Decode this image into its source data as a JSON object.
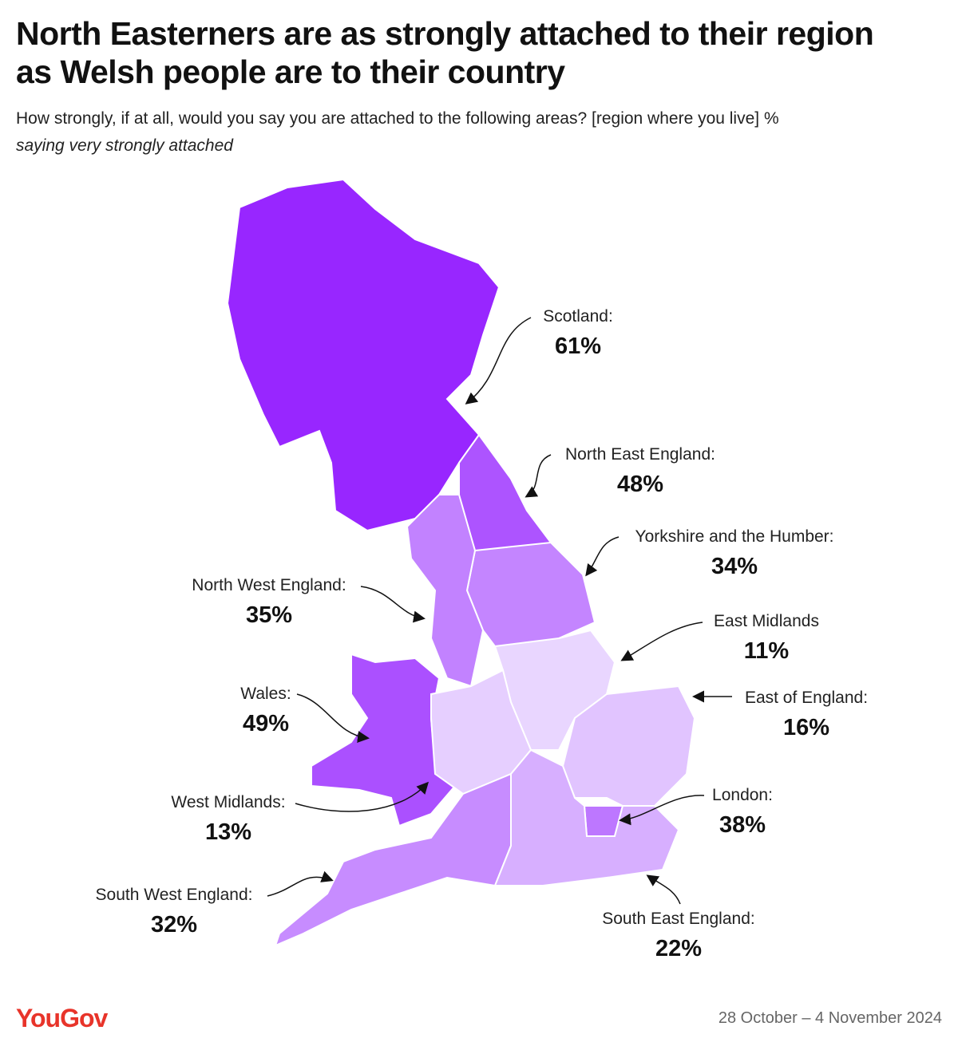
{
  "header": {
    "title": "North Easterners are as strongly attached to their region as Welsh people are to their country",
    "subtitle": "How strongly, if at all, would you say you are attached to the following areas? [region where you live] %",
    "subtitle_italic": "saying very strongly attached"
  },
  "regions": [
    {
      "name": "Scotland:",
      "value": 61,
      "value_label": "61%"
    },
    {
      "name": "North East England:",
      "value": 48,
      "value_label": "48%"
    },
    {
      "name": "Yorkshire and the Humber:",
      "value": 34,
      "value_label": "34%"
    },
    {
      "name": "North West England:",
      "value": 35,
      "value_label": "35%"
    },
    {
      "name": "East Midlands",
      "value": 11,
      "value_label": "11%"
    },
    {
      "name": "Wales:",
      "value": 49,
      "value_label": "49%"
    },
    {
      "name": "East of England:",
      "value": 16,
      "value_label": "16%"
    },
    {
      "name": "West Midlands:",
      "value": 13,
      "value_label": "13%"
    },
    {
      "name": "London:",
      "value": 38,
      "value_label": "38%"
    },
    {
      "name": "South West England:",
      "value": 32,
      "value_label": "32%"
    },
    {
      "name": "South East England:",
      "value": 22,
      "value_label": "22%"
    }
  ],
  "footer": {
    "logo": "YouGov",
    "date": "28 October – 4 November 2024"
  }
}
